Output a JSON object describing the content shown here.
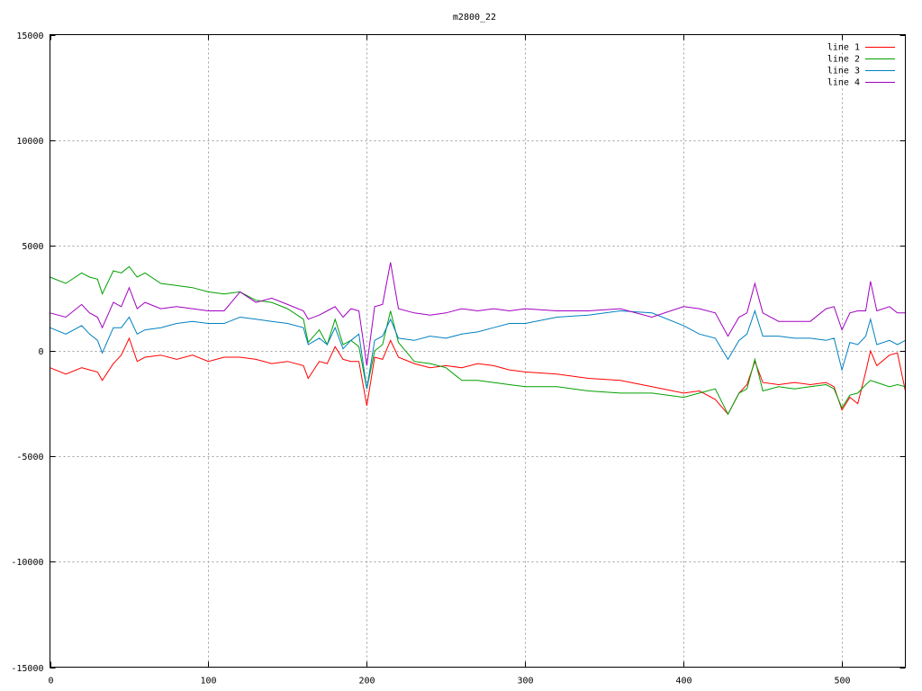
{
  "chart_data": {
    "type": "line",
    "title": "m2800_22",
    "xlabel": "",
    "ylabel": "",
    "xlim": [
      0,
      540
    ],
    "ylim": [
      -15000,
      15000
    ],
    "x_ticks": [
      0,
      100,
      200,
      300,
      400,
      500
    ],
    "y_ticks": [
      -15000,
      -10000,
      -5000,
      0,
      5000,
      10000,
      15000
    ],
    "grid": true,
    "legend_position": "top-right",
    "x": [
      0,
      10,
      20,
      25,
      30,
      33,
      40,
      45,
      50,
      55,
      60,
      70,
      80,
      90,
      100,
      110,
      120,
      130,
      140,
      150,
      160,
      163,
      170,
      175,
      180,
      185,
      190,
      195,
      200,
      205,
      210,
      215,
      220,
      230,
      240,
      250,
      260,
      270,
      280,
      290,
      300,
      320,
      340,
      360,
      380,
      400,
      410,
      420,
      428,
      435,
      440,
      445,
      450,
      460,
      470,
      480,
      490,
      495,
      500,
      505,
      510,
      515,
      518,
      522,
      530,
      535,
      540
    ],
    "series": [
      {
        "name": "line 1",
        "color": "#ff0000",
        "values": [
          -800,
          -1100,
          -800,
          -900,
          -1000,
          -1400,
          -600,
          -200,
          600,
          -500,
          -300,
          -200,
          -400,
          -200,
          -500,
          -300,
          -300,
          -400,
          -600,
          -500,
          -700,
          -1300,
          -500,
          -600,
          200,
          -400,
          -500,
          -500,
          -2600,
          -300,
          -400,
          500,
          -300,
          -600,
          -800,
          -700,
          -800,
          -600,
          -700,
          -900,
          -1000,
          -1100,
          -1300,
          -1400,
          -1700,
          -2000,
          -1900,
          -2300,
          -3000,
          -2000,
          -1600,
          -500,
          -1500,
          -1600,
          -1500,
          -1600,
          -1500,
          -1700,
          -2800,
          -2200,
          -2500,
          -1000,
          0,
          -700,
          -200,
          -100,
          -1900
        ]
      },
      {
        "name": "line 2",
        "color": "#00a000",
        "values": [
          3500,
          3200,
          3700,
          3500,
          3400,
          2700,
          3800,
          3700,
          4000,
          3500,
          3700,
          3200,
          3100,
          3000,
          2800,
          2700,
          2800,
          2400,
          2300,
          2000,
          1500,
          400,
          1000,
          300,
          1500,
          300,
          500,
          200,
          -1800,
          0,
          300,
          1900,
          400,
          -500,
          -600,
          -800,
          -1400,
          -1400,
          -1500,
          -1600,
          -1700,
          -1700,
          -1900,
          -2000,
          -2000,
          -2200,
          -2000,
          -1800,
          -3000,
          -2000,
          -1800,
          -400,
          -1900,
          -1700,
          -1800,
          -1700,
          -1600,
          -1800,
          -2700,
          -2100,
          -2000,
          -1600,
          -1400,
          -1500,
          -1700,
          -1600,
          -1700
        ]
      },
      {
        "name": "line 3",
        "color": "#0080c0",
        "values": [
          1100,
          800,
          1200,
          800,
          500,
          -100,
          1100,
          1100,
          1600,
          800,
          1000,
          1100,
          1300,
          1400,
          1300,
          1300,
          1600,
          1500,
          1400,
          1300,
          1100,
          300,
          600,
          300,
          1100,
          100,
          500,
          800,
          -1800,
          500,
          700,
          1500,
          600,
          500,
          700,
          600,
          800,
          900,
          1100,
          1300,
          1300,
          1600,
          1700,
          1900,
          1800,
          1200,
          800,
          600,
          -400,
          500,
          800,
          1900,
          700,
          700,
          600,
          600,
          500,
          600,
          -900,
          400,
          300,
          700,
          1500,
          300,
          500,
          300,
          500
        ]
      },
      {
        "name": "line 4",
        "color": "#a000c0",
        "values": [
          1800,
          1600,
          2200,
          1800,
          1600,
          1100,
          2300,
          2100,
          3000,
          2000,
          2300,
          2000,
          2100,
          2000,
          1900,
          1900,
          2800,
          2300,
          2500,
          2200,
          1900,
          1500,
          1700,
          1900,
          2100,
          1600,
          2000,
          1900,
          -700,
          2100,
          2200,
          4200,
          2000,
          1800,
          1700,
          1800,
          2000,
          1900,
          2000,
          1900,
          2000,
          1900,
          1900,
          2000,
          1600,
          2100,
          2000,
          1800,
          700,
          1600,
          1800,
          3200,
          1800,
          1400,
          1400,
          1400,
          2000,
          2100,
          1000,
          1800,
          1900,
          1900,
          3300,
          1900,
          2100,
          1800,
          1800
        ]
      }
    ]
  }
}
